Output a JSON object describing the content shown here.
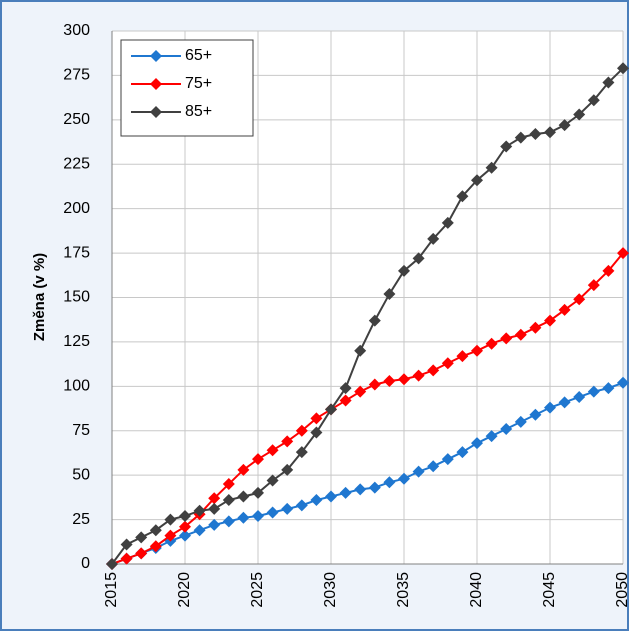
{
  "chart_data": {
    "type": "line",
    "y_label": "Změna (v %)",
    "x": [
      2015,
      2016,
      2017,
      2018,
      2019,
      2020,
      2021,
      2022,
      2023,
      2024,
      2025,
      2026,
      2027,
      2028,
      2029,
      2030,
      2031,
      2032,
      2033,
      2034,
      2035,
      2036,
      2037,
      2038,
      2039,
      2040,
      2041,
      2042,
      2043,
      2044,
      2045,
      2046,
      2047,
      2048,
      2049,
      2050
    ],
    "series": [
      {
        "name": "65+",
        "color": "#1f77d0",
        "values": [
          0,
          3,
          6,
          9,
          13,
          16,
          19,
          22,
          24,
          26,
          27,
          29,
          31,
          33,
          36,
          38,
          40,
          42,
          43,
          46,
          48,
          52,
          55,
          59,
          63,
          68,
          72,
          76,
          80,
          84,
          88,
          91,
          94,
          97,
          99,
          102
        ]
      },
      {
        "name": "75+",
        "color": "#ff0000",
        "values": [
          0,
          3,
          6,
          10,
          16,
          21,
          28,
          37,
          45,
          53,
          59,
          64,
          69,
          75,
          82,
          87,
          92,
          97,
          101,
          103,
          104,
          106,
          109,
          113,
          117,
          120,
          124,
          127,
          129,
          133,
          137,
          143,
          149,
          157,
          165,
          175
        ]
      },
      {
        "name": "85+",
        "color": "#404040",
        "values": [
          0,
          11,
          15,
          19,
          25,
          27,
          30,
          31,
          36,
          38,
          40,
          47,
          53,
          63,
          74,
          87,
          99,
          120,
          137,
          152,
          165,
          172,
          183,
          192,
          207,
          216,
          223,
          235,
          240,
          242,
          243,
          247,
          253,
          261,
          271,
          279
        ]
      }
    ],
    "xlim": [
      2015,
      2050
    ],
    "xticks": [
      2015,
      2020,
      2025,
      2030,
      2035,
      2040,
      2045,
      2050
    ],
    "ylim": [
      0,
      300
    ],
    "yticks": [
      0,
      25,
      50,
      75,
      100,
      125,
      150,
      175,
      200,
      225,
      250,
      275,
      300
    ],
    "grid": true,
    "legend": "top-left"
  }
}
